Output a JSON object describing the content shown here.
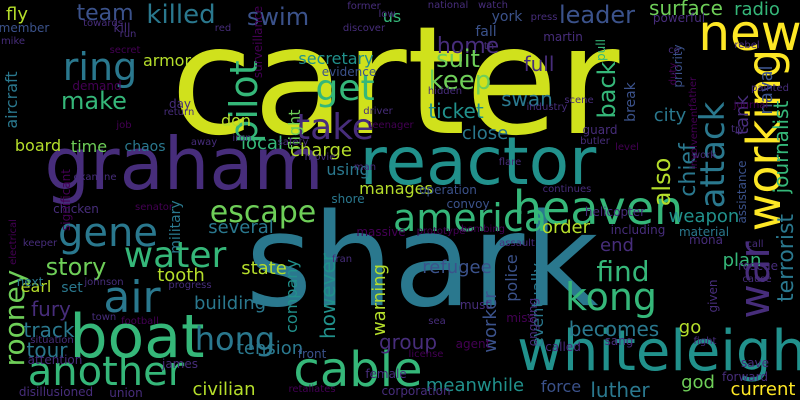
{
  "palette": {
    "background": "#000000",
    "lime": "#d0e11c",
    "yellow": "#fde725",
    "teal": "#2a788e",
    "cyan": "#21918c",
    "green": "#35b779",
    "light_green": "#6ece58",
    "yellow_green": "#b5de2b",
    "blue": "#3b528b",
    "purple": "#472d7b",
    "dark_purple": "#440154",
    "indigo": "#31688e"
  },
  "words": [
    "carter",
    "shark",
    "graham",
    "reactor",
    "boat",
    "whiteleigh",
    "cable",
    "another",
    "heaven",
    "air",
    "america",
    "gene",
    "working",
    "attack",
    "war",
    "new",
    "water",
    "kong",
    "escape",
    "get",
    "take",
    "ring",
    "pilot",
    "hong",
    "story",
    "killed",
    "team",
    "swim",
    "home",
    "leader",
    "surface",
    "radio",
    "terrorist",
    "journalist",
    "find",
    "make",
    "keep",
    "suit",
    "back",
    "also",
    "chief",
    "tank",
    "naval",
    "city",
    "ticket",
    "swan",
    "full",
    "fly",
    "rooney",
    "tour",
    "track",
    "fury",
    "tooth",
    "earl",
    "several",
    "state",
    "building",
    "company",
    "however",
    "police",
    "worker",
    "warning",
    "eventually",
    "refugee",
    "group",
    "go",
    "becomes",
    "luther",
    "god",
    "current",
    "meanwhile",
    "force",
    "civilian",
    "tension",
    "local",
    "charge",
    "using",
    "manages",
    "order",
    "end",
    "plan",
    "weapon",
    "close",
    "board",
    "time",
    "armor",
    "aircraft",
    "secretary",
    "flight",
    "don",
    "us",
    "york",
    "martin",
    "fall",
    "break",
    "set",
    "next",
    "front",
    "military",
    "chaos",
    "surveillance",
    "evidence",
    "pull",
    "priority",
    "material",
    "assistance",
    "mona",
    "helicopter",
    "operation",
    "convoy",
    "assault",
    "miss",
    "must",
    "ongoing",
    "called",
    "sang",
    "fight",
    "save",
    "forward",
    "rescue",
    "cause",
    "given",
    "call",
    "including",
    "bombing",
    "massive",
    "prototype",
    "shore",
    "fran",
    "license",
    "agent",
    "female",
    "corporation",
    "retaliates",
    "union",
    "disillusioned",
    "attention",
    "situation",
    "football",
    "town",
    "progress",
    "johnson",
    "senator",
    "chicken",
    "examine",
    "significant",
    "keeper",
    "electrical",
    "day",
    "return",
    "job",
    "demand",
    "member",
    "mike",
    "run",
    "towards",
    "secret",
    "kill",
    "red",
    "discover",
    "former",
    "low",
    "national",
    "watch",
    "press",
    "powerful",
    "co",
    "rebel",
    "duty",
    "painted",
    "try",
    "father",
    "driver",
    "industry",
    "scene",
    "guard",
    "butler",
    "level",
    "flare",
    "continues",
    "work",
    "involvement",
    "journal",
    "hidden",
    "teenager",
    "safety",
    "movie",
    "away",
    "iron",
    "man",
    "james",
    "sea",
    "th"
  ]
}
